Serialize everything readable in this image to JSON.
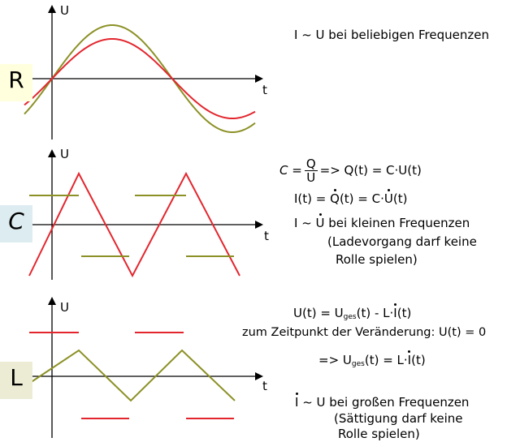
{
  "colors": {
    "red": "#e3262e",
    "olive": "#8c9126",
    "axis": "#000000",
    "tag_r_bg": "#ffffdd",
    "tag_c_bg": "#ddecf0",
    "tag_l_bg": "#ececd4"
  },
  "axes": {
    "u_label": "U",
    "t_label": "t"
  },
  "tags": {
    "r": "R",
    "c": "C",
    "l": "L"
  },
  "r_panel": {
    "line1": "I ~ U bei beliebigen Frequenzen"
  },
  "c_panel": {
    "eq1_lhs": "C =",
    "eq1_num": "Q",
    "eq1_den": "U",
    "eq1_rhs": "=> Q(t) = C·U(t)",
    "eq2_a": "I(t) = ",
    "eq2_q": "Q",
    "eq2_b": "(t) = C·",
    "eq2_u": "U",
    "eq2_c": "(t)",
    "line3_a": "I ~ ",
    "line3_u": "U",
    "line3_b": " bei kleinen Frequenzen",
    "line4": "(Ladevorgang darf keine",
    "line5": "Rolle spielen)"
  },
  "l_panel": {
    "eq1_a": "U(t) = U",
    "eq1_sub": "ges",
    "eq1_b": "(t) - L·",
    "eq1_i": "I",
    "eq1_c": "(t)",
    "line2": "zum Zeitpunkt der Veränderung: U(t) = 0",
    "eq3_a": "=> U",
    "eq3_sub": "ges",
    "eq3_b": "(t) = L·",
    "eq3_i": "I",
    "eq3_c": "(t)",
    "line4_i": "I",
    "line4_b": " ~ U bei großen Frequenzen",
    "line5": "(Sättigung darf keine",
    "line6": "Rolle spielen)"
  }
}
